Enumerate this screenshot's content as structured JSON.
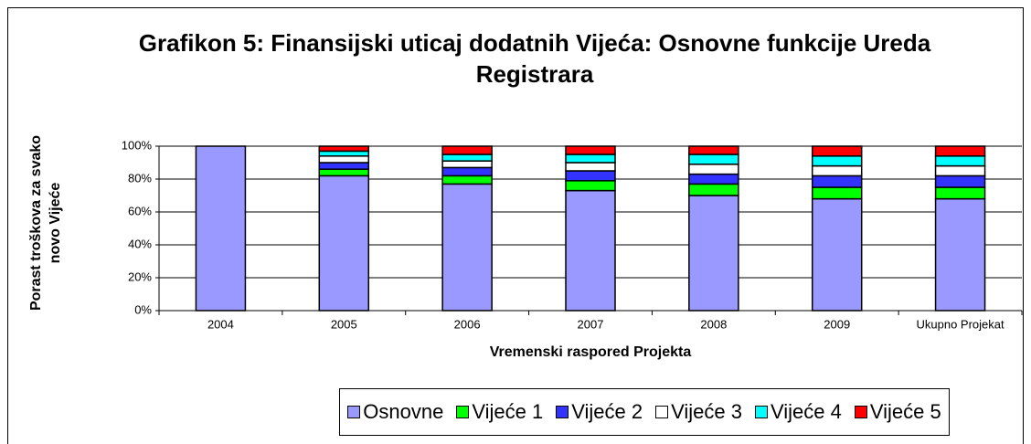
{
  "chart_data": {
    "type": "stacked_bar",
    "title": "Grafikon 5: Finansijski uticaj dodatnih Vijeća: Osnovne funkcije Ureda Registrara",
    "x_label": "Vremenski raspored Projekta",
    "y_label": "Porast troškova za svako novo Vijeće",
    "categories": [
      "2004",
      "2005",
      "2006",
      "2007",
      "2008",
      "2009",
      "Ukupno Projekat"
    ],
    "series": [
      {
        "name": "Osnovne",
        "color": "#9999ff",
        "values": [
          100,
          82,
          77,
          73,
          70,
          68,
          68
        ]
      },
      {
        "name": "Vijeće 1",
        "color": "#00ff00",
        "values": [
          0,
          4,
          5,
          6,
          7,
          7,
          7
        ]
      },
      {
        "name": "Vijeće 2",
        "color": "#3333ff",
        "values": [
          0,
          4,
          5,
          6,
          6,
          7,
          7
        ]
      },
      {
        "name": "Vijeće 3",
        "color": "#ffffff",
        "values": [
          0,
          4,
          4,
          5,
          6,
          6,
          6
        ]
      },
      {
        "name": "Vijeće 4",
        "color": "#00ffff",
        "values": [
          0,
          3,
          4,
          5,
          6,
          6,
          6
        ]
      },
      {
        "name": "Vijeće 5",
        "color": "#ff0000",
        "values": [
          0,
          3,
          5,
          5,
          5,
          6,
          6
        ]
      }
    ],
    "ylim": [
      0,
      100
    ],
    "yticks": [
      {
        "value": 0,
        "label": "0%"
      },
      {
        "value": 20,
        "label": "20%"
      },
      {
        "value": 40,
        "label": "40%"
      },
      {
        "value": 60,
        "label": "60%"
      },
      {
        "value": 80,
        "label": "80%"
      },
      {
        "value": 100,
        "label": "100%"
      }
    ],
    "grid": true,
    "legend": "bottom"
  }
}
